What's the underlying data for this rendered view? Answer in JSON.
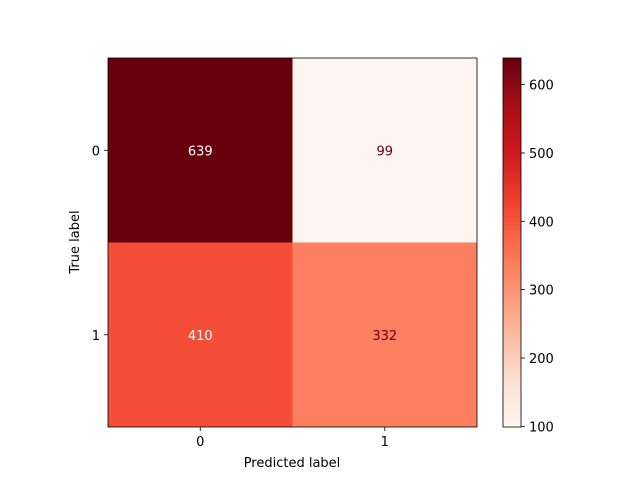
{
  "chart_data": {
    "type": "heatmap",
    "title": "",
    "xlabel": "Predicted label",
    "ylabel": "True label",
    "x_categories": [
      "0",
      "1"
    ],
    "y_categories": [
      "0",
      "1"
    ],
    "values": [
      [
        639,
        99
      ],
      [
        410,
        332
      ]
    ],
    "colormap": "Reds",
    "colorbar": {
      "range": [
        99,
        639
      ],
      "ticks": [
        100,
        200,
        300,
        400,
        500,
        600
      ]
    },
    "grid": false
  }
}
